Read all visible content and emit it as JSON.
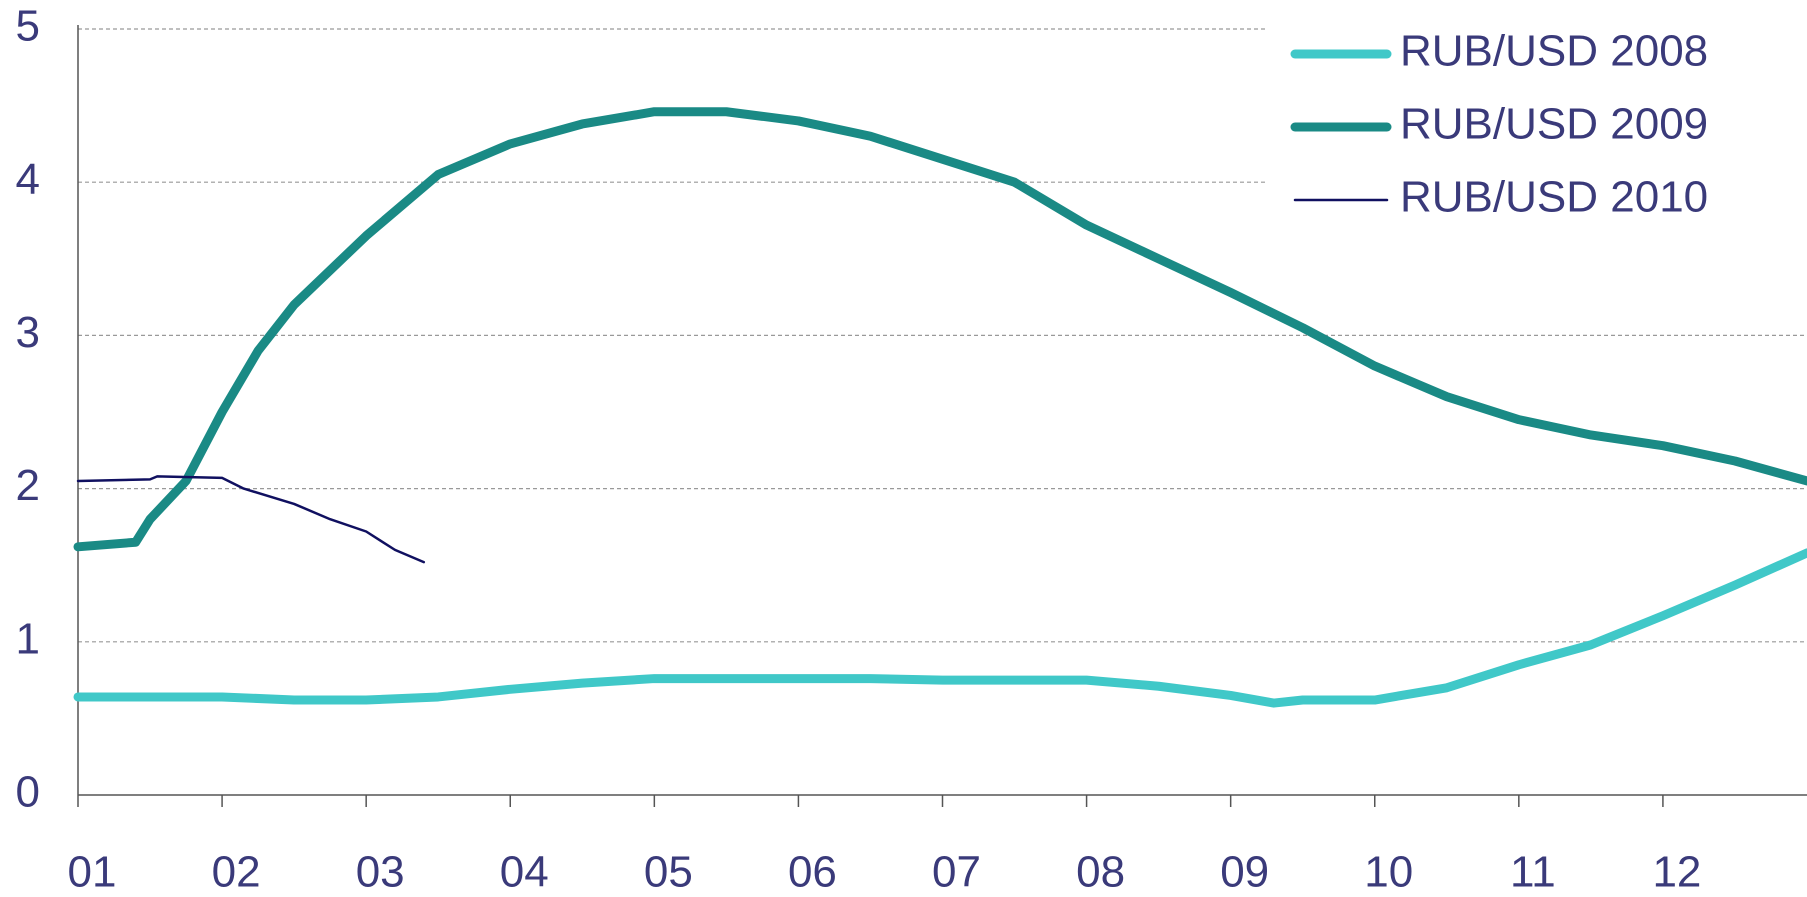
{
  "chart_data": {
    "type": "line",
    "xlim": [
      1,
      13
    ],
    "xticks": [
      {
        "value": 1,
        "label": "01"
      },
      {
        "value": 2,
        "label": "02"
      },
      {
        "value": 3,
        "label": "03"
      },
      {
        "value": 4,
        "label": "04"
      },
      {
        "value": 5,
        "label": "05"
      },
      {
        "value": 6,
        "label": "06"
      },
      {
        "value": 7,
        "label": "07"
      },
      {
        "value": 8,
        "label": "08"
      },
      {
        "value": 9,
        "label": "09"
      },
      {
        "value": 10,
        "label": "10"
      },
      {
        "value": 11,
        "label": "11"
      },
      {
        "value": 12,
        "label": "12"
      }
    ],
    "ylim": [
      0,
      5
    ],
    "yticks": [
      0,
      1,
      2,
      3,
      4,
      5
    ],
    "grid": true,
    "legend": "top-right",
    "series": [
      {
        "name": "RUB/USD 2008",
        "color": "#40c8c8",
        "width": 9,
        "x": [
          1,
          1.5,
          2,
          2.5,
          3,
          3.5,
          4,
          4.5,
          5,
          5.5,
          6,
          6.5,
          7,
          7.5,
          8,
          8.5,
          9,
          9.3,
          9.5,
          10,
          10.5,
          11,
          11.5,
          12,
          12.5,
          13
        ],
        "values": [
          0.64,
          0.64,
          0.64,
          0.62,
          0.62,
          0.64,
          0.69,
          0.73,
          0.76,
          0.76,
          0.76,
          0.76,
          0.75,
          0.75,
          0.75,
          0.71,
          0.65,
          0.6,
          0.62,
          0.62,
          0.7,
          0.85,
          0.98,
          1.17,
          1.37,
          1.58
        ]
      },
      {
        "name": "RUB/USD 2009",
        "color": "#1a8a85",
        "width": 9,
        "x": [
          1,
          1.4,
          1.5,
          1.75,
          2,
          2.25,
          2.5,
          3,
          3.5,
          4,
          4.5,
          5,
          5.5,
          6,
          6.5,
          7,
          7.5,
          8,
          8.5,
          9,
          9.5,
          10,
          10.5,
          11,
          11.5,
          12,
          12.5,
          13
        ],
        "values": [
          1.62,
          1.65,
          1.8,
          2.05,
          2.5,
          2.9,
          3.2,
          3.65,
          4.05,
          4.25,
          4.38,
          4.46,
          4.46,
          4.4,
          4.3,
          4.15,
          4.0,
          3.72,
          3.5,
          3.28,
          3.05,
          2.8,
          2.6,
          2.45,
          2.35,
          2.28,
          2.18,
          2.05
        ]
      },
      {
        "name": "RUB/USD 2010",
        "color": "#101060",
        "width": 2.5,
        "x": [
          1,
          1.5,
          1.55,
          2,
          2.15,
          2.5,
          2.75,
          3,
          3.2,
          3.4
        ],
        "values": [
          2.05,
          2.06,
          2.08,
          2.07,
          2.0,
          1.9,
          1.8,
          1.72,
          1.6,
          1.52
        ]
      }
    ]
  }
}
